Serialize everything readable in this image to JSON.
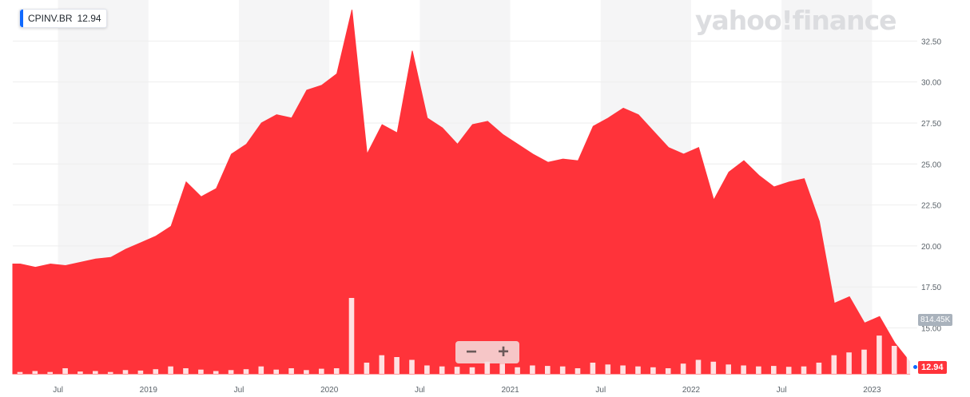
{
  "header": {
    "ticker": "CPINV.BR",
    "price": "12.94",
    "logo_text": "yahoo!finance"
  },
  "zoom": {
    "minus_label": "−",
    "plus_label": "+"
  },
  "overlay": {
    "volume_label": "814.45K",
    "last_price_label": "12.94"
  },
  "colors": {
    "series": "#ff333a",
    "accent": "#0f69ff",
    "band": "#f5f5f6",
    "grid": "#eeeeee"
  },
  "chart_data": {
    "type": "area",
    "title": "",
    "xlabel": "",
    "ylabel": "",
    "ylim": [
      12.2,
      35.0
    ],
    "y_ticks": [
      "15.00",
      "17.50",
      "20.00",
      "22.50",
      "25.00",
      "27.50",
      "30.00",
      "32.50"
    ],
    "x_ticks": [
      "Jul",
      "2019",
      "Jul",
      "2020",
      "Jul",
      "2021",
      "Jul",
      "2022",
      "Jul",
      "2023"
    ],
    "x_range": [
      "2018-04",
      "2023-04"
    ],
    "grid": true,
    "price_series": {
      "name": "CPINV.BR",
      "x": [
        "2018-04",
        "2018-05",
        "2018-06",
        "2018-07",
        "2018-08",
        "2018-09",
        "2018-10",
        "2018-11",
        "2018-12",
        "2019-01",
        "2019-02",
        "2019-03",
        "2019-04",
        "2019-05",
        "2019-06",
        "2019-07",
        "2019-08",
        "2019-09",
        "2019-10",
        "2019-11",
        "2019-12",
        "2020-01",
        "2020-02",
        "2020-03",
        "2020-04",
        "2020-05",
        "2020-06",
        "2020-07",
        "2020-08",
        "2020-09",
        "2020-10",
        "2020-11",
        "2020-12",
        "2021-01",
        "2021-02",
        "2021-03",
        "2021-04",
        "2021-05",
        "2021-06",
        "2021-07",
        "2021-08",
        "2021-09",
        "2021-10",
        "2021-11",
        "2021-12",
        "2022-01",
        "2022-02",
        "2022-03",
        "2022-04",
        "2022-05",
        "2022-06",
        "2022-07",
        "2022-08",
        "2022-09",
        "2022-10",
        "2022-11",
        "2022-12",
        "2023-01",
        "2023-02",
        "2023-03"
      ],
      "values": [
        18.9,
        18.7,
        18.9,
        18.8,
        19.0,
        19.2,
        19.3,
        19.8,
        20.2,
        20.6,
        21.2,
        23.9,
        23.0,
        23.5,
        25.6,
        26.2,
        27.5,
        28.0,
        27.8,
        29.5,
        29.8,
        30.5,
        34.4,
        25.6,
        27.4,
        26.9,
        31.9,
        27.8,
        27.2,
        26.2,
        27.4,
        27.6,
        26.8,
        26.2,
        25.6,
        25.1,
        25.3,
        25.2,
        27.3,
        27.8,
        28.4,
        28.0,
        27.0,
        26.0,
        25.6,
        26.0,
        22.8,
        24.5,
        25.2,
        24.3,
        23.6,
        23.9,
        24.1,
        21.5,
        16.5,
        16.9,
        15.3,
        15.7,
        14.1,
        12.94
      ]
    },
    "volume_series": {
      "name": "Volume",
      "values_k": [
        20,
        30,
        20,
        60,
        25,
        30,
        20,
        40,
        35,
        50,
        80,
        60,
        45,
        30,
        40,
        50,
        80,
        45,
        60,
        40,
        55,
        60,
        814,
        120,
        200,
        180,
        150,
        90,
        80,
        75,
        70,
        130,
        110,
        70,
        90,
        85,
        80,
        60,
        120,
        100,
        90,
        80,
        70,
        60,
        110,
        150,
        130,
        100,
        90,
        80,
        85,
        75,
        80,
        120,
        200,
        230,
        260,
        410,
        300,
        250
      ]
    }
  }
}
